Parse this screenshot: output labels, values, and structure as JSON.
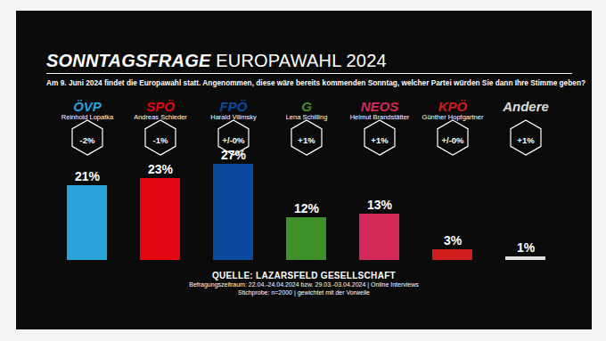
{
  "chart_data": {
    "type": "bar",
    "title": "SONNTAGSFRAGE EUROPAWAHL 2024",
    "subtitle": "Am 9. Juni 2024 findet die Europawahl statt. Angenommen, diese wäre bereits kommenden Sonntag, welcher Partei würden Sie dann Ihre Stimme geben?",
    "categories": [
      "ÖVP",
      "SPÖ",
      "FPÖ",
      "G",
      "NEOS",
      "KPÖ",
      "Andere"
    ],
    "candidates": [
      "Reinhold Lopatka",
      "Andreas Schieder",
      "Harald Vilimsky",
      "Lena Schilling",
      "Helmut Brandstätter",
      "Günther Hopfgartner",
      null
    ],
    "changes": [
      "-2%",
      "-1%",
      "+/-0%",
      "+1%",
      "+1%",
      "+/-0%",
      "+1%"
    ],
    "values": [
      21,
      23,
      27,
      12,
      13,
      3,
      1
    ],
    "value_labels": [
      "21%",
      "23%",
      "27%",
      "12%",
      "13%",
      "3%",
      "1%"
    ],
    "colors": [
      "#2aa3d8",
      "#e30613",
      "#0a4a9e",
      "#3f8f2a",
      "#d42a5b",
      "#d01c1c",
      "#dddddd"
    ],
    "data_labels": true,
    "tick_labels": false,
    "ylim": [
      0,
      27
    ],
    "source": "QUELLE: LAZARSFELD GESELLSCHAFT",
    "notes": [
      "Befragungszeitraum: 22.04.-24.04.2024 bzw. 29.03.-03.04.2024 | Online Interviews",
      "Stichprobe: n=2000 | gewichtet mit der Vorwelle"
    ]
  }
}
